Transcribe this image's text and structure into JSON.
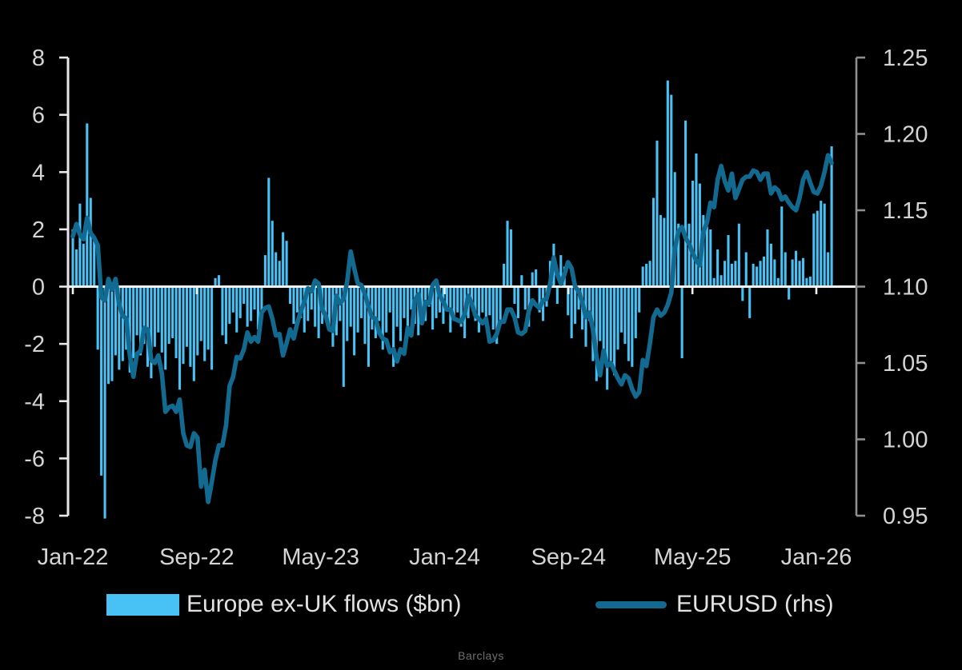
{
  "page": {
    "source": "Barclays"
  },
  "chart_data": {
    "type": "bar+line",
    "title": "",
    "background": "#000000",
    "text_color": "#d4d4d4",
    "zero_line_color": "#f2f2f2",
    "left_spine_color": "#e8e8e8",
    "right_spine_color": "#8f8f8f",
    "frequency": "weekly",
    "x_start": "Jan-22",
    "x_tick_labels": [
      "Jan-22",
      "Sep-22",
      "May-23",
      "Jan-24",
      "Sep-24",
      "May-25",
      "Jan-26"
    ],
    "x_tick_month_offsets": [
      0,
      8,
      16,
      24,
      32,
      40,
      48
    ],
    "left_axis": {
      "min": -8,
      "max": 8,
      "ticks": [
        8,
        6,
        4,
        2,
        0,
        -2,
        -4,
        -6,
        -8
      ],
      "tick_labels": [
        "8",
        "6",
        "4",
        "2",
        "0",
        "-2",
        "-4",
        "-6",
        "-8"
      ]
    },
    "right_axis": {
      "min": 0.95,
      "max": 1.25,
      "ticks": [
        1.25,
        1.2,
        1.15,
        1.1,
        1.05,
        1.0,
        0.95
      ],
      "tick_labels": [
        "1.25",
        "1.20",
        "1.15",
        "1.10",
        "1.05",
        "1.00",
        "0.95"
      ]
    },
    "series": [
      {
        "name": "Europe ex-UK flows ($bn)",
        "type": "bar",
        "axis": "left",
        "color": "#48c1f4",
        "values": [
          2.0,
          1.3,
          2.9,
          1.5,
          5.7,
          3.1,
          1.6,
          -2.2,
          -6.6,
          -8.1,
          -3.4,
          -3.3,
          -2.4,
          -2.9,
          -2.6,
          -2.2,
          -3.0,
          -2.5,
          -1.7,
          -2.4,
          -2.0,
          -2.8,
          -3.2,
          -2.1,
          -1.6,
          -2.3,
          -2.9,
          -2.0,
          -1.8,
          -2.5,
          -3.6,
          -2.7,
          -2.1,
          -2.8,
          -3.3,
          -2.4,
          -1.9,
          -2.6,
          -2.2,
          -2.9,
          0.3,
          0.4,
          -1.7,
          -2.0,
          -1.3,
          -0.9,
          -1.6,
          -1.1,
          -0.6,
          -1.4,
          -1.2,
          -0.8,
          -1.5,
          -1.0,
          1.1,
          3.8,
          2.3,
          1.2,
          0.9,
          1.9,
          1.6,
          -0.6,
          -1.3,
          -0.9,
          -1.1,
          -1.6,
          -1.2,
          -0.8,
          -1.4,
          -1.8,
          -1.3,
          -1.0,
          -1.5,
          -2.1,
          -1.7,
          -1.2,
          -3.5,
          -1.9,
          -1.4,
          -2.4,
          -1.6,
          -1.1,
          -2.0,
          -2.8,
          -1.5,
          -1.8,
          -1.2,
          -2.2,
          -1.6,
          -0.9,
          -2.8,
          -1.4,
          -1.9,
          -1.1,
          -1.6,
          -0.8,
          -1.3,
          -1.7,
          -1.0,
          -1.2,
          -0.7,
          -1.5,
          -1.1,
          -0.9,
          -1.3,
          -0.8,
          -1.6,
          -1.2,
          -0.9,
          -1.4,
          -1.8,
          -1.1,
          -0.7,
          -1.2,
          -1.6,
          -0.9,
          -1.3,
          -1.0,
          -1.5,
          -2.0,
          -1.2,
          0.8,
          2.3,
          2.0,
          -0.6,
          -1.1,
          0.4,
          -0.8,
          -1.4,
          0.5,
          0.6,
          -0.9,
          -1.2,
          -0.7,
          0.9,
          1.5,
          -0.6,
          1.1,
          0.7,
          -1.0,
          -1.8,
          -1.3,
          -0.8,
          -1.5,
          -2.1,
          -1.2,
          -2.6,
          -3.3,
          -1.9,
          -2.4,
          -3.6,
          -2.8,
          -3.1,
          -2.2,
          -1.6,
          -2.0,
          -2.6,
          -2.8,
          -1.8,
          -0.9,
          0.7,
          0.8,
          0.9,
          3.1,
          5.1,
          2.5,
          2.4,
          7.2,
          6.7,
          4.0,
          2.2,
          -2.5,
          5.8,
          2.2,
          3.7,
          4.65,
          3.6,
          2.5,
          2.1,
          2.0,
          0.3,
          1.3,
          0.4,
          0.9,
          1.8,
          0.8,
          0.9,
          2.2,
          -0.5,
          1.2,
          -1.1,
          0.8,
          0.7,
          0.9,
          1.05,
          2.0,
          1.5,
          0.95,
          0.3,
          2.8,
          1.2,
          -0.45,
          0.95,
          1.25,
          0.9,
          1.0,
          0.3,
          0.35,
          2.55,
          2.65,
          3.0,
          2.9,
          1.2,
          4.9
        ]
      },
      {
        "name": "EURUSD (rhs)",
        "type": "line",
        "axis": "right",
        "color": "#136a91",
        "values": [
          1.133,
          1.141,
          1.134,
          1.131,
          1.145,
          1.135,
          1.132,
          1.127,
          1.093,
          1.091,
          1.105,
          1.098,
          1.105,
          1.088,
          1.081,
          1.079,
          1.055,
          1.041,
          1.056,
          1.058,
          1.073,
          1.072,
          1.052,
          1.05,
          1.055,
          1.043,
          1.018,
          1.021,
          1.022,
          1.018,
          1.026,
          1.004,
          0.996,
          0.995,
          1.004,
          1.001,
          0.969,
          0.98,
          0.959,
          0.972,
          0.986,
          0.996,
          0.996,
          1.009,
          1.035,
          1.041,
          1.054,
          1.053,
          1.059,
          1.07,
          1.064,
          1.067,
          1.064,
          1.083,
          1.086,
          1.087,
          1.079,
          1.068,
          1.069,
          1.055,
          1.063,
          1.072,
          1.066,
          1.076,
          1.084,
          1.09,
          1.099,
          1.097,
          1.104,
          1.102,
          1.085,
          1.081,
          1.072,
          1.071,
          1.094,
          1.089,
          1.092,
          1.103,
          1.123,
          1.112,
          1.102,
          1.101,
          1.095,
          1.087,
          1.08,
          1.079,
          1.07,
          1.066,
          1.065,
          1.057,
          1.059,
          1.051,
          1.059,
          1.056,
          1.073,
          1.068,
          1.091,
          1.095,
          1.076,
          1.09,
          1.089,
          1.101,
          1.104,
          1.094,
          1.09,
          1.085,
          1.085,
          1.079,
          1.078,
          1.077,
          1.082,
          1.094,
          1.089,
          1.081,
          1.079,
          1.076,
          1.079,
          1.064,
          1.065,
          1.069,
          1.077,
          1.077,
          1.085,
          1.085,
          1.08,
          1.07,
          1.069,
          1.071,
          1.084,
          1.091,
          1.088,
          1.086,
          1.091,
          1.092,
          1.102,
          1.119,
          1.108,
          1.102,
          1.108,
          1.116,
          1.112,
          1.1,
          1.097,
          1.09,
          1.08,
          1.083,
          1.072,
          1.054,
          1.042,
          1.058,
          1.048,
          1.05,
          1.045,
          1.04,
          1.036,
          1.042,
          1.04,
          1.033,
          1.028,
          1.031,
          1.052,
          1.048,
          1.063,
          1.08,
          1.085,
          1.081,
          1.083,
          1.088,
          1.096,
          1.125,
          1.136,
          1.139,
          1.132,
          1.128,
          1.122,
          1.117,
          1.114,
          1.136,
          1.142,
          1.155,
          1.152,
          1.17,
          1.179,
          1.169,
          1.163,
          1.174,
          1.158,
          1.164,
          1.17,
          1.172,
          1.172,
          1.176,
          1.175,
          1.17,
          1.174,
          1.174,
          1.161,
          1.165,
          1.163,
          1.157,
          1.159,
          1.155,
          1.152,
          1.15,
          1.158,
          1.17,
          1.175,
          1.168,
          1.162,
          1.161,
          1.166,
          1.175,
          1.186,
          1.181
        ]
      }
    ],
    "legend_position": "bottom",
    "grid": "zero-line-only"
  }
}
